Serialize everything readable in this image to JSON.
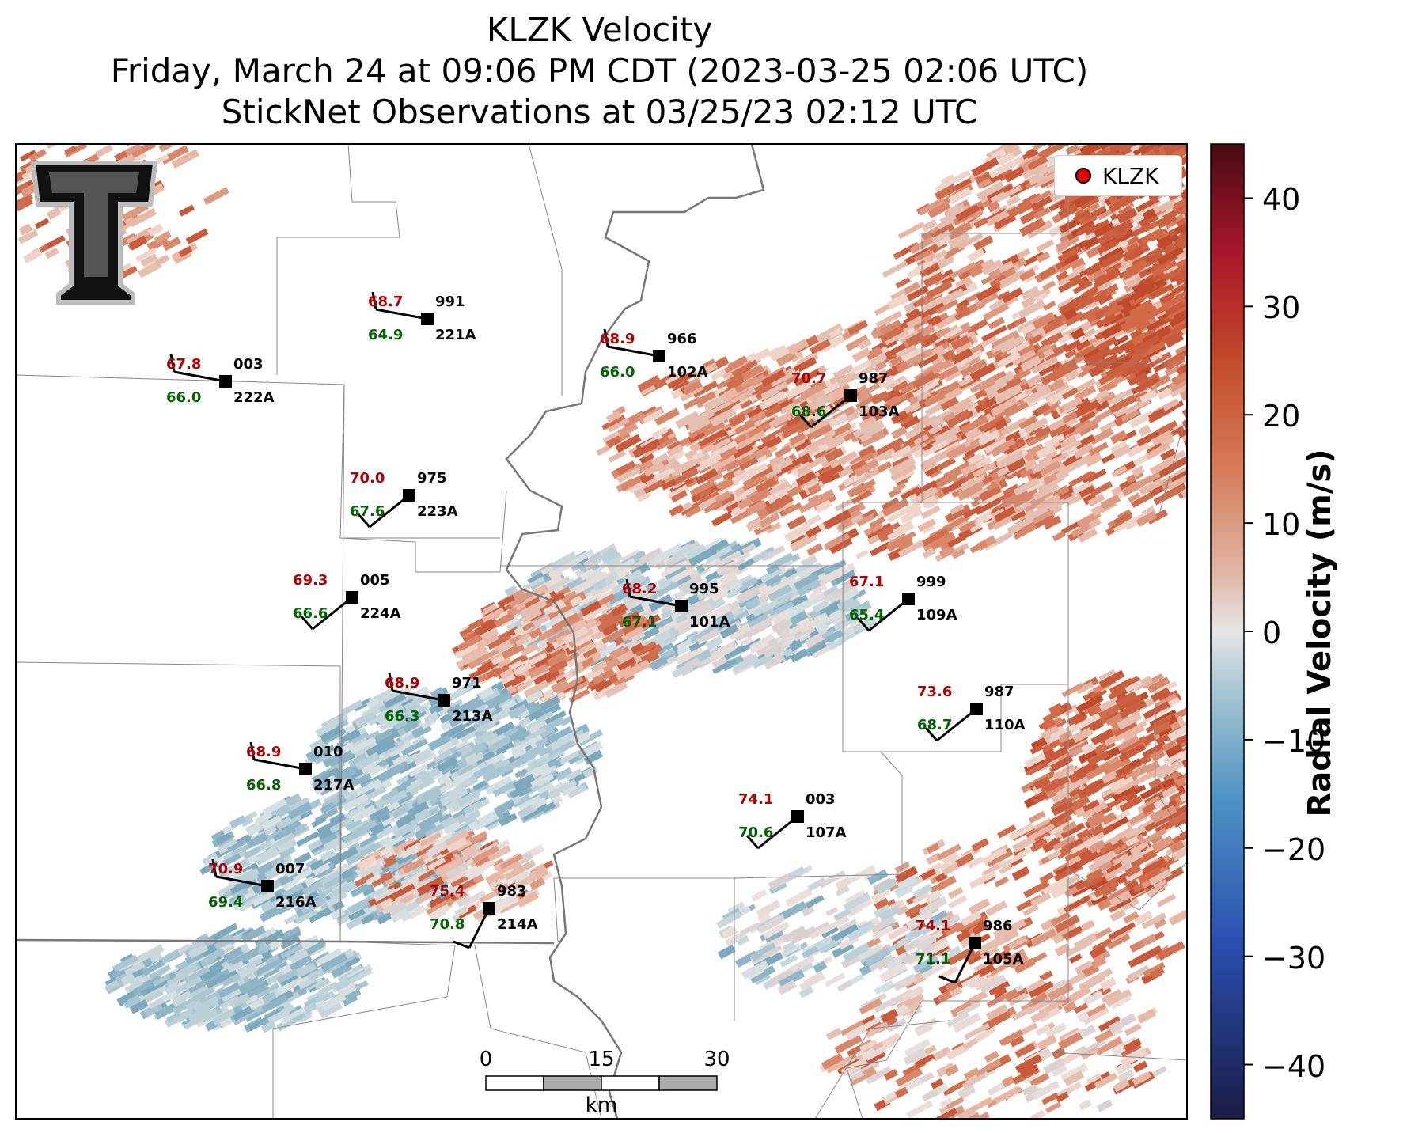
{
  "title": {
    "line1": "KLZK Velocity",
    "line2": "Friday, March 24 at 09:06 PM CDT (2023-03-25 02:06 UTC)",
    "line3": "StickNet Observations at 03/25/23 02:12 UTC"
  },
  "legend": {
    "label": "KLZK"
  },
  "colorbar": {
    "label": "Radial Velocity (m/s)",
    "ticks": [
      "40",
      "30",
      "20",
      "10",
      "0",
      "−10",
      "−20",
      "−30",
      "−40"
    ],
    "range": [
      -45,
      45
    ]
  },
  "scale_bar": {
    "ticks": [
      "0",
      "15",
      "30"
    ],
    "unit": "km"
  },
  "logo": {
    "name": "texas-tech-logo"
  },
  "stations": [
    {
      "id": "221A",
      "temp": "68.7",
      "dew": "64.9",
      "pres": "991"
    },
    {
      "id": "102A",
      "temp": "68.9",
      "dew": "66.0",
      "pres": "966"
    },
    {
      "id": "222A",
      "temp": "67.8",
      "dew": "66.0",
      "pres": "003"
    },
    {
      "id": "103A",
      "temp": "70.7",
      "dew": "68.6",
      "pres": "987"
    },
    {
      "id": "223A",
      "temp": "70.0",
      "dew": "67.6",
      "pres": "975"
    },
    {
      "id": "224A",
      "temp": "69.3",
      "dew": "66.6",
      "pres": "005"
    },
    {
      "id": "101A",
      "temp": "68.2",
      "dew": "67.1",
      "pres": "995"
    },
    {
      "id": "109A",
      "temp": "67.1",
      "dew": "65.4",
      "pres": "999"
    },
    {
      "id": "213A",
      "temp": "68.9",
      "dew": "66.3",
      "pres": "971"
    },
    {
      "id": "110A",
      "temp": "73.6",
      "dew": "68.7",
      "pres": "987"
    },
    {
      "id": "217A",
      "temp": "68.9",
      "dew": "66.8",
      "pres": "010"
    },
    {
      "id": "107A",
      "temp": "74.1",
      "dew": "70.6",
      "pres": "003"
    },
    {
      "id": "216A",
      "temp": "70.9",
      "dew": "69.4",
      "pres": "007"
    },
    {
      "id": "214A",
      "temp": "75.4",
      "dew": "70.8",
      "pres": "983"
    },
    {
      "id": "105A",
      "temp": "74.1",
      "dew": "71.1",
      "pres": "986"
    }
  ]
}
